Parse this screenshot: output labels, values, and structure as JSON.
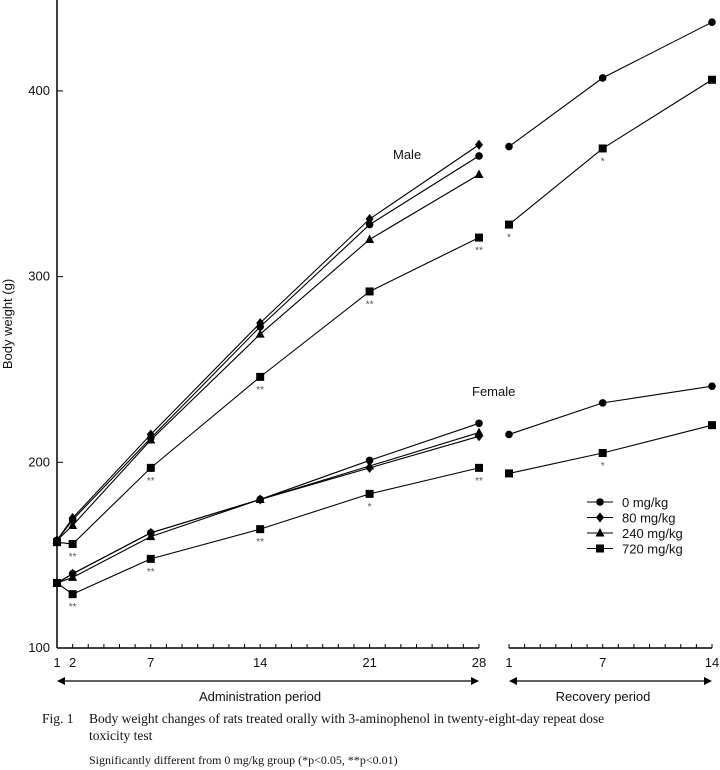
{
  "chart_data": {
    "type": "line",
    "ylabel": "Body weight (g)",
    "ylim": [
      100,
      450
    ],
    "yticks": [
      100,
      200,
      300,
      400
    ],
    "ytick_labels": [
      "100",
      "200",
      "300",
      "400"
    ],
    "x_segments": [
      {
        "name": "administration",
        "label": "Administration period",
        "range": [
          1,
          28
        ],
        "tick_labels": [
          {
            "day": 1,
            "text": "1"
          },
          {
            "day": 2,
            "text": "2"
          },
          {
            "day": 7,
            "text": "7"
          },
          {
            "day": 14,
            "text": "14"
          },
          {
            "day": 21,
            "text": "21"
          },
          {
            "day": 28,
            "text": "28"
          }
        ]
      },
      {
        "name": "recovery",
        "label": "Recovery period",
        "range": [
          1,
          14
        ],
        "tick_labels": [
          {
            "day": 1,
            "text": "1"
          },
          {
            "day": 7,
            "text": "7"
          },
          {
            "day": 14,
            "text": "14"
          }
        ]
      }
    ],
    "group_labels": {
      "male": "Male",
      "female": "Female"
    },
    "legend": {
      "placement": "lower-right",
      "entries": [
        {
          "label": "0 mg/kg",
          "marker": "circle"
        },
        {
          "label": "80 mg/kg",
          "marker": "diamond"
        },
        {
          "label": "240 mg/kg",
          "marker": "triangle"
        },
        {
          "label": "720 mg/kg",
          "marker": "square"
        }
      ]
    },
    "series": [
      {
        "sex": "male",
        "name": "0 mg/kg",
        "marker": "circle",
        "administration": {
          "x": [
            1,
            2,
            7,
            14,
            21,
            28
          ],
          "y": [
            158,
            169,
            213,
            273,
            328,
            365
          ]
        },
        "recovery": {
          "x": [
            1,
            7,
            14
          ],
          "y": [
            370,
            407,
            437
          ]
        }
      },
      {
        "sex": "male",
        "name": "80 mg/kg",
        "marker": "diamond",
        "administration": {
          "x": [
            1,
            2,
            7,
            14,
            21,
            28
          ],
          "y": [
            158,
            170,
            215,
            275,
            331,
            371
          ]
        }
      },
      {
        "sex": "male",
        "name": "240 mg/kg",
        "marker": "triangle",
        "administration": {
          "x": [
            1,
            2,
            7,
            14,
            21,
            28
          ],
          "y": [
            158,
            166,
            212,
            269,
            320,
            355
          ]
        }
      },
      {
        "sex": "male",
        "name": "720 mg/kg",
        "marker": "square",
        "administration": {
          "x": [
            1,
            2,
            7,
            14,
            21,
            28
          ],
          "y": [
            157,
            156,
            197,
            246,
            292,
            321
          ],
          "sig": [
            "",
            "**",
            "**",
            "**",
            "**",
            "**"
          ]
        },
        "recovery": {
          "x": [
            1,
            7,
            14
          ],
          "y": [
            328,
            369,
            406
          ],
          "sig": [
            "*",
            "*",
            ""
          ]
        }
      },
      {
        "sex": "female",
        "name": "0 mg/kg",
        "marker": "circle",
        "administration": {
          "x": [
            1,
            2,
            7,
            14,
            21,
            28
          ],
          "y": [
            135,
            140,
            162,
            180,
            201,
            221
          ]
        },
        "recovery": {
          "x": [
            1,
            7,
            14
          ],
          "y": [
            215,
            232,
            241
          ]
        }
      },
      {
        "sex": "female",
        "name": "80 mg/kg",
        "marker": "diamond",
        "administration": {
          "x": [
            1,
            2,
            7,
            14,
            21,
            28
          ],
          "y": [
            135,
            140,
            162,
            180,
            197,
            214
          ]
        }
      },
      {
        "sex": "female",
        "name": "240 mg/kg",
        "marker": "triangle",
        "administration": {
          "x": [
            1,
            2,
            7,
            14,
            21,
            28
          ],
          "y": [
            135,
            138,
            160,
            180,
            198,
            216
          ]
        }
      },
      {
        "sex": "female",
        "name": "720 mg/kg",
        "marker": "square",
        "administration": {
          "x": [
            1,
            2,
            7,
            14,
            21,
            28
          ],
          "y": [
            135,
            129,
            148,
            164,
            183,
            197
          ],
          "sig": [
            "",
            "**",
            "**",
            "**",
            "*",
            "**"
          ]
        },
        "recovery": {
          "x": [
            1,
            7,
            14
          ],
          "y": [
            194,
            205,
            220
          ],
          "sig": [
            "",
            "*",
            ""
          ]
        }
      }
    ]
  },
  "caption": {
    "fig_label": "Fig. 1",
    "text_line1": "Body weight changes of rats treated orally with 3-aminophenol in twenty-eight-day repeat dose",
    "text_line2": "toxicity test",
    "note": "Significantly different from 0 mg/kg group (*p<0.05, **p<0.01)"
  }
}
